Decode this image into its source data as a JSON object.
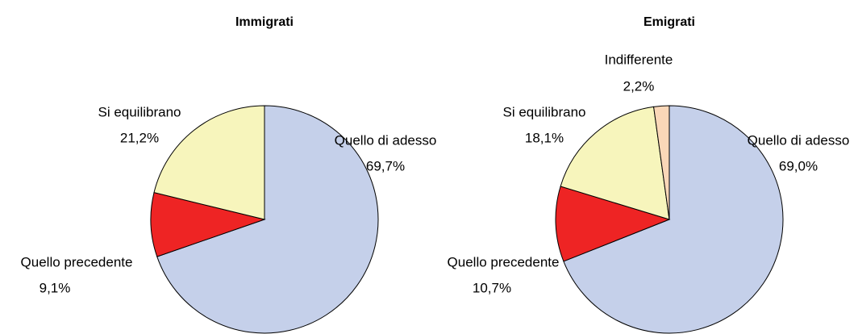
{
  "chart_data": [
    {
      "type": "pie",
      "title": "Immigrati",
      "categories": [
        "Quello di adesso",
        "Quello precedente",
        "Si equilibrano"
      ],
      "values": [
        69.7,
        9.1,
        21.2
      ],
      "value_labels": [
        "69,7%",
        "9,1%",
        "21,2%"
      ],
      "colors": [
        "#c5d0ea",
        "#ee2424",
        "#f7f5bc"
      ]
    },
    {
      "type": "pie",
      "title": "Emigrati",
      "categories": [
        "Quello di adesso",
        "Quello precedente",
        "Si equilibrano",
        "Indifferente"
      ],
      "values": [
        69.0,
        10.7,
        18.1,
        2.2
      ],
      "value_labels": [
        "69,0%",
        "10,7%",
        "18,1%",
        "2,2%"
      ],
      "colors": [
        "#c5d0ea",
        "#ee2424",
        "#f7f5bc",
        "#fad7b8"
      ]
    }
  ]
}
